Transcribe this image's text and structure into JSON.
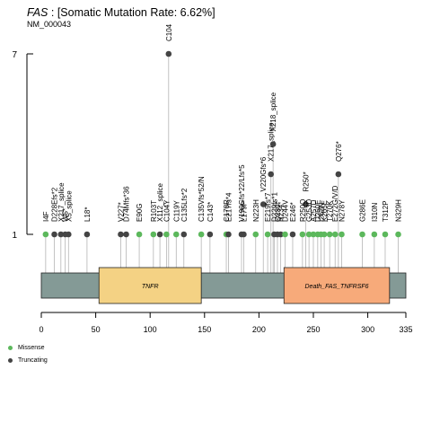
{
  "header": {
    "gene": "FAS",
    "title_rest": ": [Somatic Mutation Rate: 6.62%]",
    "transcript": "NM_000043"
  },
  "colors": {
    "missense": "#5cb85c",
    "truncating": "#444444",
    "backbone": "#849a96",
    "tnfr_domain": "#f4d284",
    "death_domain": "#f7aa7a",
    "stem": "#b5b5b5"
  },
  "legend": {
    "missense_label": "Missense",
    "truncating_label": "Truncating"
  },
  "chart_data": {
    "type": "lollipop",
    "protein_length": 335,
    "xlim": [
      0,
      335
    ],
    "x_ticks": [
      0,
      50,
      100,
      150,
      200,
      250,
      300,
      335
    ],
    "y_ticks": [
      1,
      7
    ],
    "domains": [
      {
        "name": "TNFR",
        "start": 53,
        "end": 147
      },
      {
        "name": "Death_FAS_TNFRSF6",
        "start": 223,
        "end": 320
      }
    ],
    "mutations": [
      {
        "label": "I4F",
        "position": 4,
        "count": 1,
        "type": "missense"
      },
      {
        "label": "D228Efs*2",
        "position": 12,
        "count": 1,
        "type": "truncating"
      },
      {
        "label": "X217_splice",
        "position": 18,
        "count": 1,
        "type": "truncating"
      },
      {
        "label": "W5*",
        "position": 22,
        "count": 1,
        "type": "truncating"
      },
      {
        "label": "X5_splice",
        "position": 25,
        "count": 1,
        "type": "truncating"
      },
      {
        "label": "L18*",
        "position": 42,
        "count": 1,
        "type": "truncating"
      },
      {
        "label": "V227*",
        "position": 73,
        "count": 1,
        "type": "truncating"
      },
      {
        "label": "D74Mfs*36",
        "position": 78,
        "count": 1,
        "type": "truncating"
      },
      {
        "label": "E90G",
        "position": 90,
        "count": 1,
        "type": "missense"
      },
      {
        "label": "R103T",
        "position": 103,
        "count": 1,
        "type": "missense"
      },
      {
        "label": "X112_splice",
        "position": 109,
        "count": 1,
        "type": "truncating"
      },
      {
        "label": "C104Y",
        "position": 115,
        "count": 1,
        "type": "missense"
      },
      {
        "label": "C104",
        "position": 117,
        "count": 7,
        "type": "truncating"
      },
      {
        "label": "C119Y",
        "position": 124,
        "count": 1,
        "type": "missense"
      },
      {
        "label": "C135Lfs*2",
        "position": 131,
        "count": 1,
        "type": "truncating"
      },
      {
        "label": "C135Vfs*52/N",
        "position": 147,
        "count": 1,
        "type": "missense"
      },
      {
        "label": "C143*",
        "position": 155,
        "count": 1,
        "type": "truncating"
      },
      {
        "label": "C178R",
        "position": 170,
        "count": 1,
        "type": "missense"
      },
      {
        "label": "E217fs*4",
        "position": 172,
        "count": 1,
        "type": "truncating"
      },
      {
        "label": "V190Gfs*22/Lfs*5",
        "position": 184,
        "count": 1,
        "type": "truncating"
      },
      {
        "label": "L179P",
        "position": 186,
        "count": 1,
        "type": "truncating"
      },
      {
        "label": "N223H",
        "position": 197,
        "count": 1,
        "type": "missense"
      },
      {
        "label": "V220Gfs*6",
        "position": 204,
        "count": 2,
        "type": "truncating"
      },
      {
        "label": "X217_splice",
        "position": 211,
        "count": 3,
        "type": "truncating"
      },
      {
        "label": "X218_splice",
        "position": 213,
        "count": 4,
        "type": "truncating"
      },
      {
        "label": "E219fs*7",
        "position": 208,
        "count": 1,
        "type": "missense"
      },
      {
        "label": "D229fs*1",
        "position": 214,
        "count": 1,
        "type": "truncating"
      },
      {
        "label": "Q230*",
        "position": 217,
        "count": 1,
        "type": "truncating"
      },
      {
        "label": "R234*",
        "position": 220,
        "count": 1,
        "type": "truncating"
      },
      {
        "label": "D244V",
        "position": 224,
        "count": 1,
        "type": "missense"
      },
      {
        "label": "E246*",
        "position": 231,
        "count": 1,
        "type": "truncating"
      },
      {
        "label": "R250*",
        "position": 243,
        "count": 2,
        "type": "truncating"
      },
      {
        "label": "R250Q",
        "position": 240,
        "count": 1,
        "type": "missense"
      },
      {
        "label": "G253D",
        "position": 246,
        "count": 1,
        "type": "missense"
      },
      {
        "label": "A257D",
        "position": 250,
        "count": 1,
        "type": "missense"
      },
      {
        "label": "D260E",
        "position": 254,
        "count": 1,
        "type": "missense"
      },
      {
        "label": "I262N",
        "position": 257,
        "count": 1,
        "type": "missense"
      },
      {
        "label": "K265E",
        "position": 260,
        "count": 1,
        "type": "missense"
      },
      {
        "label": "T270K",
        "position": 265,
        "count": 1,
        "type": "missense"
      },
      {
        "label": "E272G/V/D",
        "position": 270,
        "count": 1,
        "type": "missense"
      },
      {
        "label": "Q276*",
        "position": 273,
        "count": 3,
        "type": "truncating"
      },
      {
        "label": "N278Y",
        "position": 276,
        "count": 1,
        "type": "missense"
      },
      {
        "label": "G286E",
        "position": 295,
        "count": 1,
        "type": "missense"
      },
      {
        "label": "I310N",
        "position": 306,
        "count": 1,
        "type": "missense"
      },
      {
        "label": "T312P",
        "position": 316,
        "count": 1,
        "type": "missense"
      },
      {
        "label": "N329H",
        "position": 328,
        "count": 1,
        "type": "missense"
      }
    ]
  }
}
